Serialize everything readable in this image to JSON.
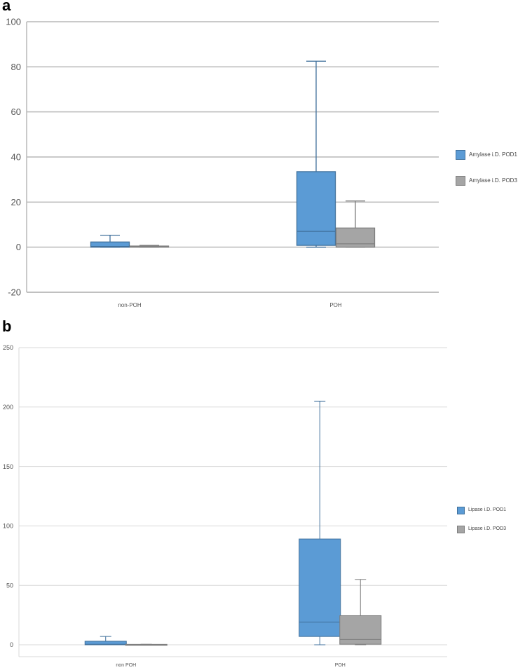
{
  "panels": [
    {
      "letter": "a",
      "chart_data": {
        "type": "box",
        "categories": [
          "non-POH",
          "POH"
        ],
        "ylim": [
          -20,
          100
        ],
        "yticks": [
          -20,
          0,
          20,
          40,
          60,
          80,
          100
        ],
        "grid": true,
        "legend_position": "right",
        "series": [
          {
            "name": "Amylase i.D. POD1",
            "color": "#5b9bd5",
            "boxes": [
              {
                "min": 0,
                "q1": 0,
                "median": 0.3,
                "q3": 2.3,
                "max": 5.3
              },
              {
                "min": 0,
                "q1": 0.8,
                "median": 7,
                "q3": 33.5,
                "max": 82.5
              }
            ]
          },
          {
            "name": "Amylase i.D. POD3",
            "color": "#a5a5a5",
            "boxes": [
              {
                "min": 0,
                "q1": 0,
                "median": 0.2,
                "q3": 0.5,
                "max": 0.8
              },
              {
                "min": 0,
                "q1": 0,
                "median": 1.5,
                "q3": 8.5,
                "max": 20.5
              }
            ]
          }
        ]
      }
    },
    {
      "letter": "b",
      "chart_data": {
        "type": "box",
        "categories": [
          "non POH",
          "POH"
        ],
        "ylim": [
          -10,
          250
        ],
        "yticks": [
          0,
          50,
          100,
          150,
          200,
          250
        ],
        "grid": true,
        "legend_position": "right",
        "series": [
          {
            "name": "Lipase i.D. POD1",
            "color": "#5b9bd5",
            "boxes": [
              {
                "min": 0,
                "q1": 0,
                "median": 0.5,
                "q3": 3,
                "max": 7
              },
              {
                "min": 0,
                "q1": 7,
                "median": 19,
                "q3": 89,
                "max": 205
              }
            ]
          },
          {
            "name": "Lipase i.D. POD3",
            "color": "#a5a5a5",
            "boxes": [
              {
                "min": 0,
                "q1": 0,
                "median": 0.2,
                "q3": 0.4,
                "max": 0.5
              },
              {
                "min": 0,
                "q1": 0.5,
                "median": 4.5,
                "q3": 24.5,
                "max": 55
              }
            ]
          }
        ]
      }
    }
  ]
}
